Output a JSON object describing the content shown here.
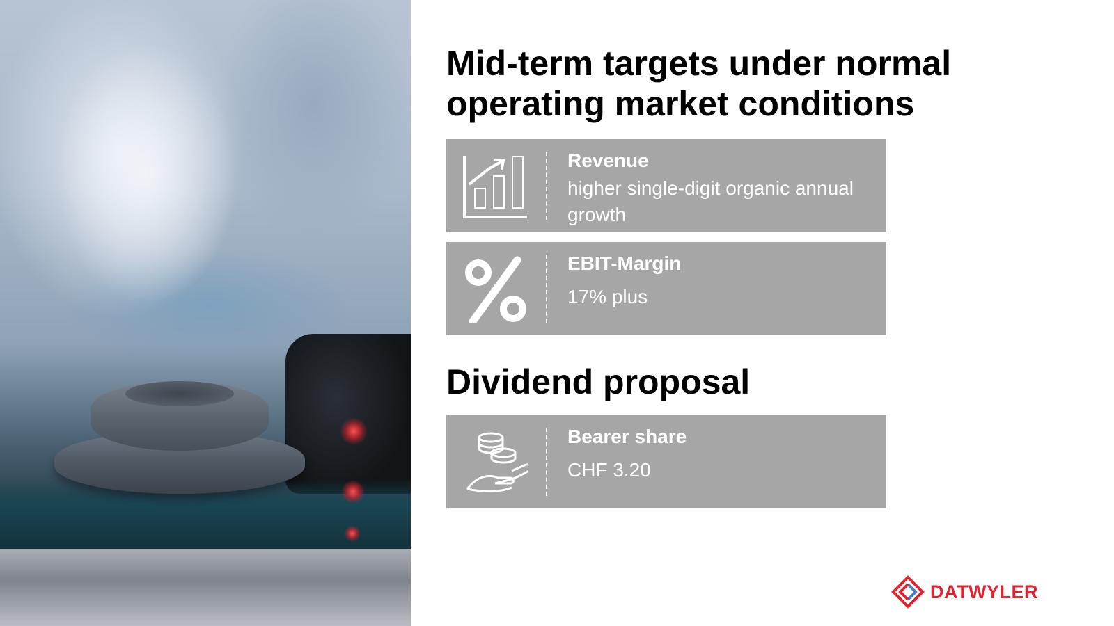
{
  "title": "Mid-term targets under normal operating market conditions",
  "targets": [
    {
      "icon": "bar-chart-growth-icon",
      "title": "Revenue",
      "text": "higher single-digit organic annual growth"
    },
    {
      "icon": "percent-icon",
      "title": "EBIT-Margin",
      "text": "17% plus"
    }
  ],
  "dividend": {
    "heading": "Dividend proposal",
    "card": {
      "icon": "coins-hand-icon",
      "title": "Bearer share",
      "text": "CHF 3.20"
    }
  },
  "brand": {
    "logo_text": "DATWYLER",
    "color": "#e3232f",
    "card_color": "#a6a6a6"
  }
}
